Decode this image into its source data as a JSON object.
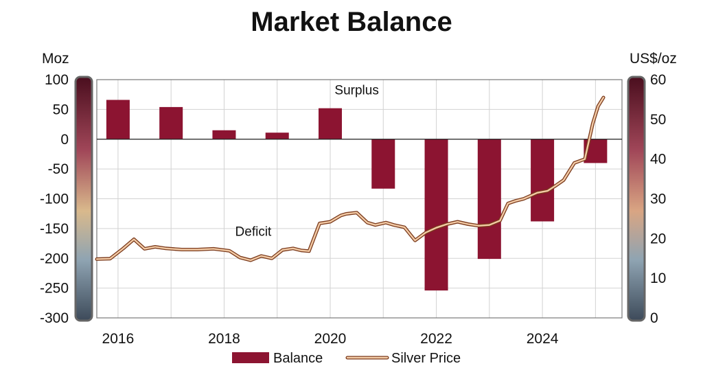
{
  "chart_data": {
    "type": "bar",
    "title": "Market Balance",
    "left_axis": {
      "label": "Moz",
      "range": [
        -300,
        100
      ],
      "ticks": [
        100,
        50,
        0,
        -50,
        -100,
        -150,
        -200,
        -250,
        -300
      ]
    },
    "right_axis": {
      "label": "US$/oz",
      "range": [
        0,
        60
      ],
      "ticks": [
        60,
        50,
        40,
        30,
        20,
        10,
        0
      ]
    },
    "x_axis": {
      "range": [
        2015.6,
        2025.5
      ],
      "tick_labels": [
        "2016",
        "2018",
        "2020",
        "2022",
        "2024"
      ],
      "tick_values": [
        2016,
        2018,
        2020,
        2022,
        2024
      ]
    },
    "grid": true,
    "legend_position": "bottom",
    "annotations": [
      {
        "text": "Surplus",
        "x": 2020.5,
        "y": 75
      },
      {
        "text": "Deficit",
        "x": 2018.55,
        "y": -162
      }
    ],
    "series": [
      {
        "name": "Balance",
        "type": "bar",
        "axis": "left",
        "color": "#8c1431",
        "x": [
          2016,
          2017,
          2018,
          2019,
          2020,
          2021,
          2022,
          2023,
          2024,
          2025
        ],
        "values": [
          66,
          54,
          15,
          11,
          52,
          -83,
          -254,
          -201,
          -138,
          -40
        ]
      },
      {
        "name": "Silver Price",
        "type": "line",
        "axis": "right",
        "color": "#c98a5c",
        "x": [
          2015.6,
          2015.85,
          2016.1,
          2016.3,
          2016.5,
          2016.7,
          2016.9,
          2017.2,
          2017.5,
          2017.8,
          2018.1,
          2018.3,
          2018.5,
          2018.7,
          2018.9,
          2019.1,
          2019.3,
          2019.45,
          2019.6,
          2019.8,
          2020.0,
          2020.2,
          2020.3,
          2020.5,
          2020.7,
          2020.85,
          2021.05,
          2021.2,
          2021.4,
          2021.6,
          2021.8,
          2022.0,
          2022.2,
          2022.4,
          2022.6,
          2022.8,
          2023.0,
          2023.2,
          2023.35,
          2023.5,
          2023.65,
          2023.9,
          2024.1,
          2024.25,
          2024.4,
          2024.6,
          2024.8,
          2024.95,
          2025.05,
          2025.15
        ],
        "values": [
          14.8,
          14.9,
          17.5,
          19.8,
          17.4,
          17.9,
          17.5,
          17.2,
          17.2,
          17.4,
          16.9,
          15.2,
          14.5,
          15.6,
          15.0,
          17.1,
          17.5,
          17.0,
          16.8,
          23.8,
          24.2,
          25.8,
          26.2,
          26.5,
          24.0,
          23.4,
          24.0,
          23.4,
          22.8,
          19.5,
          21.5,
          22.7,
          23.6,
          24.2,
          23.6,
          23.2,
          23.4,
          24.5,
          28.8,
          29.5,
          30.0,
          31.5,
          32.0,
          33.3,
          34.7,
          39.0,
          40.0,
          49.0,
          53.3,
          55.5
        ]
      }
    ]
  }
}
